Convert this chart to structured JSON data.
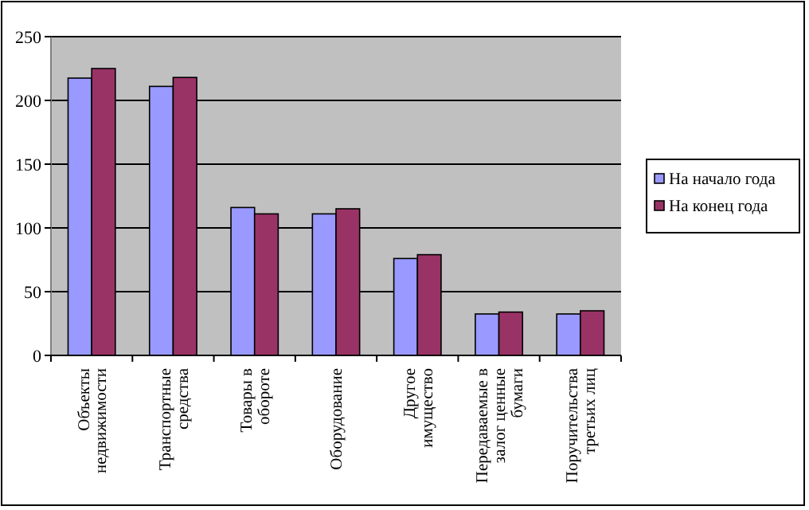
{
  "chart_data": {
    "type": "bar",
    "categories": [
      "Объекты недвижимости",
      "Транспортные средства",
      "Товары в обороте",
      "Оборудование",
      "Другое имущество",
      "Передаваемые в залог ценные бумаги",
      "Поручительства третьих лиц"
    ],
    "series": [
      {
        "name": "На начало года",
        "color": "#9999ff",
        "values": [
          217.5,
          211,
          116,
          111,
          76,
          32.5,
          32.5
        ]
      },
      {
        "name": "На конец года",
        "color": "#993366",
        "values": [
          225,
          218,
          111,
          115,
          79,
          34,
          35
        ]
      }
    ],
    "ylim": [
      0,
      250
    ],
    "yticks": [
      0,
      50,
      100,
      150,
      200,
      250
    ],
    "grid": "y",
    "legend": "right"
  }
}
